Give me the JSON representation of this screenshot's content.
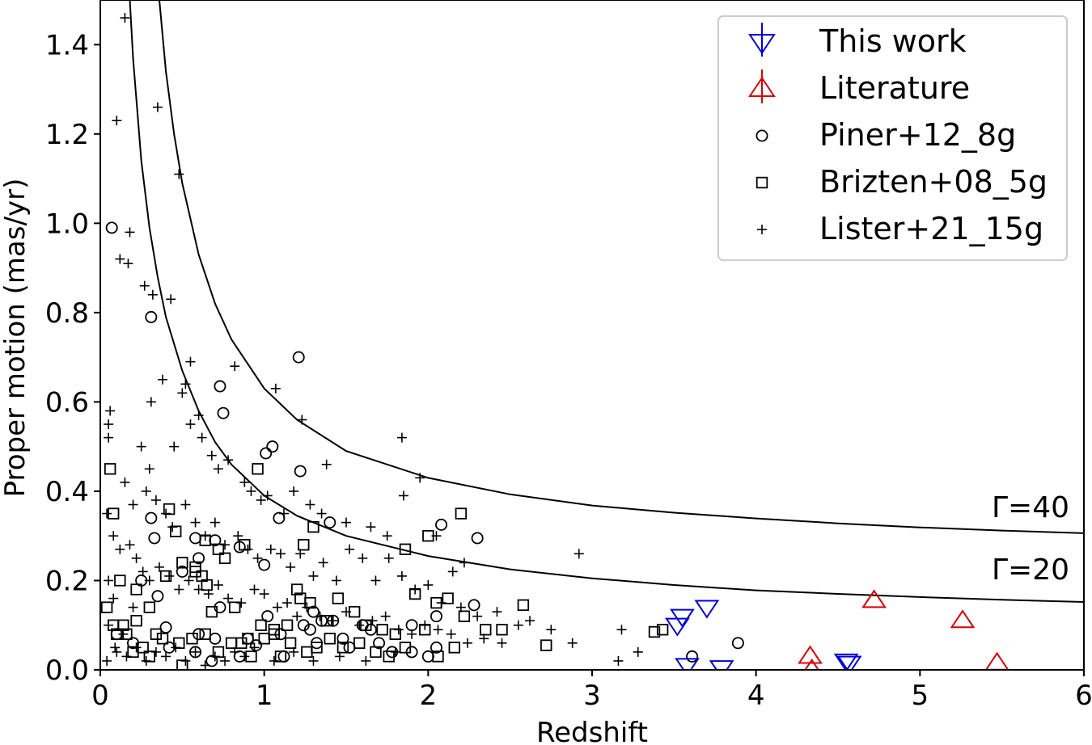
{
  "chart_data": {
    "type": "scatter",
    "title": "",
    "xlabel": "Redshift",
    "ylabel": "Proper motion (mas/yr)",
    "xlim": [
      0,
      6
    ],
    "ylim": [
      0,
      1.5
    ],
    "xticks": [
      "0",
      "1",
      "2",
      "3",
      "4",
      "5",
      "6"
    ],
    "yticks": [
      "0.0",
      "0.2",
      "0.4",
      "0.6",
      "0.8",
      "1.0",
      "1.2",
      "1.4"
    ],
    "xtick_values": [
      0,
      1,
      2,
      3,
      4,
      5,
      6
    ],
    "ytick_values": [
      0,
      0.2,
      0.4,
      0.6,
      0.8,
      1.0,
      1.2,
      1.4
    ],
    "legend_position": "top-right",
    "curves": [
      {
        "name": "Γ=40",
        "label": "Γ=40",
        "color": "#000000",
        "x": [
          0.36,
          0.4,
          0.45,
          0.5,
          0.6,
          0.7,
          0.8,
          1.0,
          1.2,
          1.5,
          2.0,
          2.5,
          3.0,
          3.5,
          4.0,
          4.5,
          5.0,
          5.5,
          6.0
        ],
        "y": [
          1.5,
          1.34,
          1.2,
          1.09,
          0.93,
          0.82,
          0.74,
          0.63,
          0.56,
          0.49,
          0.43,
          0.393,
          0.368,
          0.352,
          0.339,
          0.328,
          0.319,
          0.312,
          0.306
        ]
      },
      {
        "name": "Γ=20",
        "label": "Γ=20",
        "color": "#000000",
        "x": [
          0.18,
          0.2,
          0.25,
          0.3,
          0.35,
          0.4,
          0.5,
          0.6,
          0.7,
          0.8,
          1.0,
          1.2,
          1.5,
          2.0,
          2.5,
          3.0,
          3.5,
          4.0,
          4.5,
          5.0,
          5.5,
          6.0
        ],
        "y": [
          1.5,
          1.37,
          1.14,
          0.99,
          0.88,
          0.79,
          0.67,
          0.58,
          0.51,
          0.46,
          0.39,
          0.345,
          0.3,
          0.255,
          0.225,
          0.205,
          0.19,
          0.178,
          0.17,
          0.163,
          0.157,
          0.152
        ]
      }
    ],
    "series": [
      {
        "name": "This work",
        "label": "This work",
        "marker": "triangle-down",
        "color": "#0000dd",
        "upper_limit": true,
        "x": [
          3.52,
          3.55,
          3.58,
          3.7,
          3.79,
          4.55,
          4.57
        ],
        "y": [
          0.1,
          0.12,
          0.01,
          0.14,
          0.005,
          0.02,
          0.015
        ]
      },
      {
        "name": "Literature",
        "label": "Literature",
        "marker": "triangle-up",
        "color": "#dd0000",
        "upper_limit": true,
        "x": [
          4.33,
          4.34,
          4.72,
          5.26,
          5.47
        ],
        "y": [
          0.03,
          0.0,
          0.155,
          0.11,
          0.015
        ]
      },
      {
        "name": "Piner+12_8g",
        "label": "Piner+12_8g",
        "marker": "circle",
        "color": "#000000",
        "x": [
          0.07,
          0.31,
          1.21,
          0.73,
          0.75,
          1.05,
          1.01,
          1.22,
          1.09,
          1.4,
          2.08,
          2.3,
          0.31,
          0.33,
          0.58,
          0.7,
          0.85,
          1.0,
          0.25,
          0.5,
          0.6,
          0.73,
          1.02,
          1.3,
          1.42,
          1.6,
          1.65,
          1.9,
          2.05,
          2.28,
          0.35,
          0.4,
          0.6,
          0.7,
          0.9,
          1.1,
          1.28,
          1.35,
          1.48,
          1.7,
          1.9,
          2.05,
          3.61,
          3.89,
          0.1,
          0.2,
          0.42,
          0.58,
          0.68,
          0.85,
          0.95,
          1.12,
          1.24,
          1.32,
          1.52,
          1.78,
          2.0
        ],
        "y": [
          0.99,
          0.79,
          0.7,
          0.635,
          0.575,
          0.5,
          0.485,
          0.445,
          0.34,
          0.33,
          0.325,
          0.295,
          0.34,
          0.295,
          0.295,
          0.29,
          0.275,
          0.235,
          0.2,
          0.22,
          0.25,
          0.14,
          0.12,
          0.13,
          0.11,
          0.1,
          0.09,
          0.1,
          0.12,
          0.145,
          0.165,
          0.095,
          0.08,
          0.07,
          0.07,
          0.08,
          0.09,
          0.11,
          0.07,
          0.06,
          0.04,
          0.05,
          0.03,
          0.06,
          0.08,
          0.06,
          0.05,
          0.04,
          0.02,
          0.03,
          0.055,
          0.03,
          0.1,
          0.06,
          0.05,
          0.04,
          0.03
        ]
      },
      {
        "name": "Brizten+08_5g",
        "label": "Brizten+08_5g",
        "marker": "square",
        "color": "#000000",
        "x": [
          0.06,
          0.08,
          0.42,
          0.46,
          0.58,
          0.64,
          0.72,
          0.96,
          1.24,
          1.3,
          1.86,
          2.2,
          0.12,
          0.22,
          0.3,
          0.4,
          0.5,
          0.58,
          0.62,
          0.68,
          0.76,
          0.82,
          0.88,
          0.98,
          1.06,
          1.14,
          1.22,
          1.28,
          1.38,
          1.45,
          1.55,
          1.62,
          1.72,
          1.8,
          1.92,
          2.0,
          2.05,
          2.12,
          2.22,
          2.35,
          2.45,
          2.58,
          2.72,
          3.38,
          3.43,
          0.04,
          0.08,
          0.1,
          0.14,
          0.16,
          0.22,
          0.26,
          0.3,
          0.34,
          0.38,
          0.48,
          0.56,
          0.64,
          0.72,
          0.8,
          0.86,
          0.92,
          1.0,
          1.06,
          1.1,
          1.16,
          1.26,
          1.32,
          1.4,
          1.48,
          1.58,
          1.68,
          1.76,
          1.86,
          1.98,
          2.06,
          2.16,
          0.5,
          0.9,
          1.2,
          0.2,
          0.65
        ],
        "y": [
          0.45,
          0.35,
          0.36,
          0.31,
          0.23,
          0.29,
          0.27,
          0.45,
          0.28,
          0.32,
          0.27,
          0.35,
          0.2,
          0.18,
          0.14,
          0.21,
          0.24,
          0.22,
          0.21,
          0.13,
          0.25,
          0.14,
          0.28,
          0.1,
          0.09,
          0.1,
          0.16,
          0.15,
          0.11,
          0.16,
          0.13,
          0.1,
          0.09,
          0.08,
          0.17,
          0.3,
          0.15,
          0.16,
          0.12,
          0.09,
          0.09,
          0.145,
          0.055,
          0.085,
          0.09,
          0.14,
          0.1,
          0.08,
          0.1,
          0.08,
          0.11,
          0.05,
          0.03,
          0.08,
          0.07,
          0.06,
          0.07,
          0.08,
          0.04,
          0.06,
          0.06,
          0.03,
          0.07,
          0.08,
          0.03,
          0.06,
          0.04,
          0.05,
          0.07,
          0.05,
          0.06,
          0.04,
          0.03,
          0.05,
          0.09,
          0.03,
          0.05,
          0.01,
          0.07,
          0.18,
          0.04,
          0.19
        ]
      },
      {
        "name": "Lister+21_15g",
        "label": "Lister+21_15g",
        "marker": "plus",
        "color": "#000000",
        "x": [
          0.15,
          0.1,
          0.35,
          0.48,
          0.18,
          0.12,
          0.17,
          0.27,
          0.32,
          0.43,
          0.06,
          0.05,
          0.05,
          0.55,
          0.52,
          0.38,
          0.31,
          0.6,
          0.82,
          1.07,
          1.84,
          1.95,
          1.23,
          1.38,
          2.92,
          0.25,
          0.3,
          0.45,
          0.5,
          0.55,
          0.62,
          0.68,
          0.72,
          0.78,
          0.88,
          0.92,
          0.98,
          1.02,
          1.12,
          1.18,
          1.28,
          1.35,
          1.5,
          1.65,
          1.75,
          1.85,
          2.05,
          2.15,
          2.22,
          0.15,
          0.2,
          0.28,
          0.34,
          0.4,
          0.44,
          0.52,
          0.58,
          0.64,
          0.7,
          0.76,
          0.84,
          0.9,
          0.96,
          1.04,
          1.1,
          1.16,
          1.22,
          1.3,
          1.36,
          1.44,
          1.52,
          1.6,
          1.68,
          1.76,
          1.84,
          1.92,
          2.0,
          2.08,
          2.2,
          2.3,
          2.42,
          2.55,
          2.62,
          2.75,
          2.88,
          3.18,
          3.28,
          3.16,
          0.04,
          0.08,
          0.12,
          0.18,
          0.22,
          0.26,
          0.3,
          0.36,
          0.42,
          0.48,
          0.54,
          0.6,
          0.66,
          0.72,
          0.78,
          0.86,
          0.94,
          1.0,
          1.08,
          1.14,
          1.2,
          1.26,
          1.34,
          1.42,
          1.5,
          1.58,
          1.66,
          1.74,
          1.82,
          1.9,
          1.98,
          2.06,
          2.14,
          2.24,
          2.34,
          2.45,
          0.04,
          0.1,
          0.16,
          0.22,
          0.28,
          0.34,
          0.4,
          0.46,
          0.52,
          0.58,
          0.64,
          0.7,
          0.76,
          0.82,
          0.88,
          0.94,
          1.06,
          1.18,
          1.3,
          1.46,
          1.62,
          1.8,
          0.05,
          0.09,
          0.14,
          0.05,
          0.08,
          0.2
        ],
        "y": [
          1.46,
          1.23,
          1.26,
          1.11,
          0.98,
          0.92,
          0.91,
          0.86,
          0.84,
          0.83,
          0.58,
          0.55,
          0.52,
          0.69,
          0.64,
          0.65,
          0.6,
          0.57,
          0.68,
          0.63,
          0.52,
          0.43,
          0.56,
          0.46,
          0.26,
          0.5,
          0.45,
          0.5,
          0.62,
          0.55,
          0.52,
          0.48,
          0.45,
          0.47,
          0.42,
          0.4,
          0.38,
          0.39,
          0.35,
          0.4,
          0.37,
          0.35,
          0.33,
          0.32,
          0.3,
          0.39,
          0.3,
          0.22,
          0.24,
          0.42,
          0.37,
          0.4,
          0.38,
          0.35,
          0.32,
          0.37,
          0.33,
          0.3,
          0.33,
          0.28,
          0.3,
          0.27,
          0.25,
          0.27,
          0.26,
          0.23,
          0.26,
          0.21,
          0.24,
          0.2,
          0.27,
          0.25,
          0.2,
          0.25,
          0.21,
          0.18,
          0.19,
          0.15,
          0.14,
          0.12,
          0.13,
          0.1,
          0.11,
          0.09,
          0.06,
          0.09,
          0.04,
          0.02,
          0.35,
          0.3,
          0.27,
          0.28,
          0.25,
          0.22,
          0.2,
          0.23,
          0.21,
          0.18,
          0.2,
          0.18,
          0.17,
          0.19,
          0.16,
          0.15,
          0.18,
          0.17,
          0.14,
          0.15,
          0.12,
          0.14,
          0.12,
          0.11,
          0.13,
          0.1,
          0.11,
          0.12,
          0.09,
          0.08,
          0.1,
          0.09,
          0.08,
          0.06,
          0.07,
          0.06,
          0.02,
          0.04,
          0.03,
          0.05,
          0.02,
          0.04,
          0.03,
          0.05,
          0.02,
          0.04,
          0.01,
          0.03,
          0.02,
          0.04,
          0.03,
          0.05,
          0.02,
          0.04,
          0.02,
          0.03,
          0.02,
          0.04,
          0.1,
          0.05,
          0.08,
          0.2,
          0.16,
          0.14
        ]
      }
    ]
  }
}
